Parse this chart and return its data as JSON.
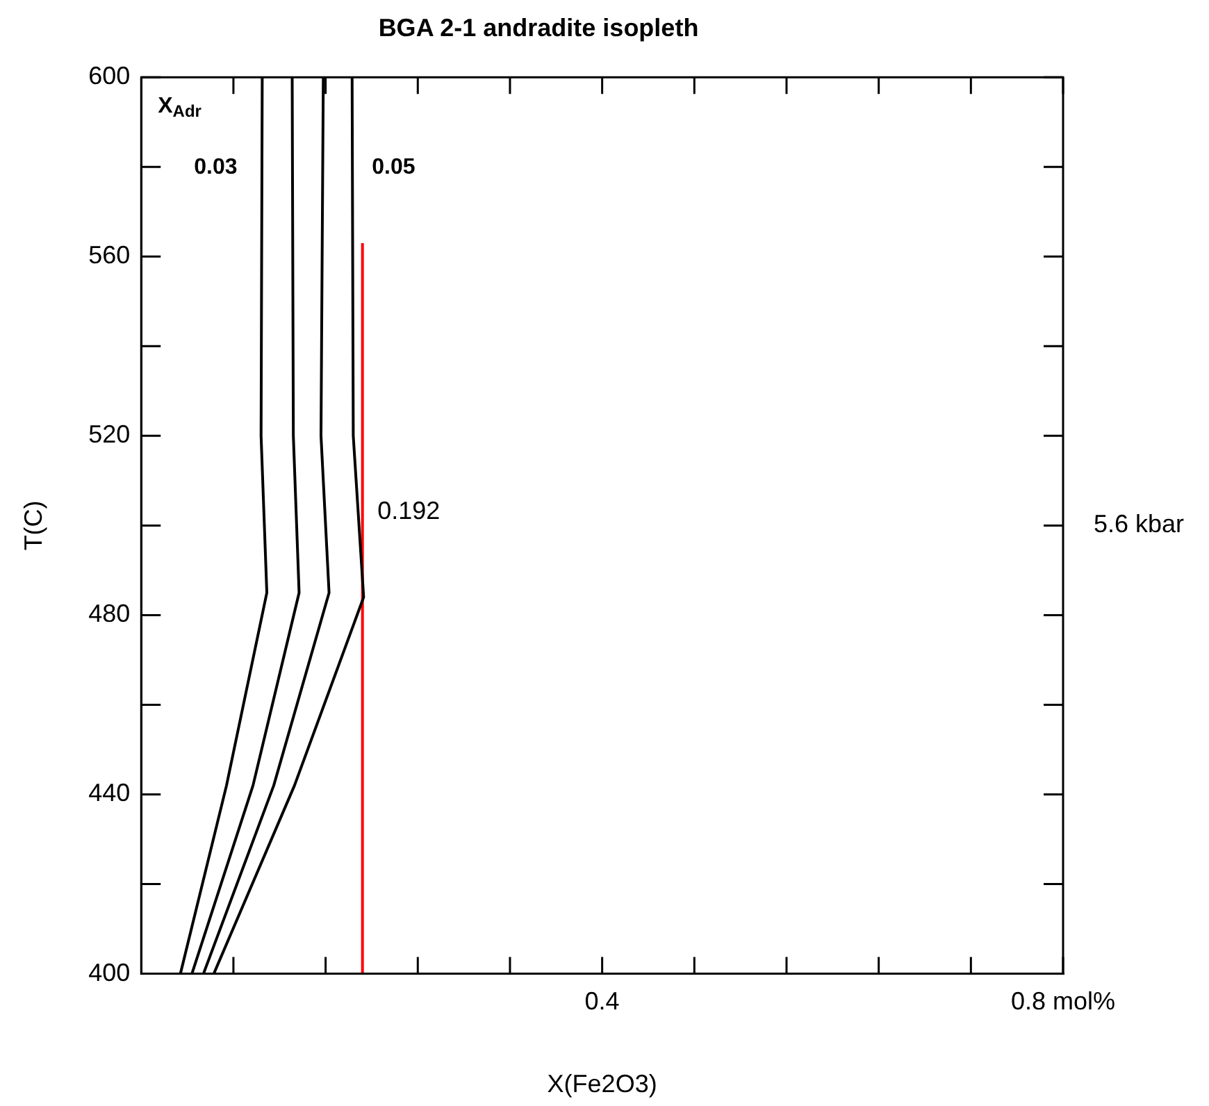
{
  "chart_data": {
    "type": "line",
    "title": "BGA 2-1 andradite isopleth",
    "xlabel": "X(Fe2O3)",
    "ylabel": "T(C)",
    "series": [
      {
        "color": "#000000",
        "x": [
          0.105,
          0.104,
          0.109,
          0.074,
          0.034
        ],
        "values": [
          600,
          520,
          485,
          442,
          400
        ]
      },
      {
        "color": "#000000",
        "x": [
          0.131,
          0.132,
          0.137,
          0.097,
          0.044
        ],
        "values": [
          600,
          520,
          485,
          442,
          400
        ]
      },
      {
        "color": "#000000",
        "x": [
          0.158,
          0.156,
          0.163,
          0.115,
          0.054
        ],
        "values": [
          600,
          520,
          485,
          442,
          400
        ]
      },
      {
        "color": "#000000",
        "x": [
          0.183,
          0.184,
          0.193,
          0.133,
          0.063
        ],
        "values": [
          600,
          520,
          484,
          442,
          400
        ]
      },
      {
        "color": "#ff0000",
        "x": [
          0.192,
          0.192
        ],
        "values": [
          400,
          563
        ]
      }
    ],
    "annotations": [
      "X$_{Adr}$",
      "0.03",
      "0.05",
      "0.192",
      "5.6 kbar"
    ],
    "xlim": [
      0,
      0.8
    ],
    "ylim": [
      400,
      600
    ],
    "xticks": [
      {
        "value": 0.08,
        "label": null
      },
      {
        "value": 0.16,
        "label": null
      },
      {
        "value": 0.24,
        "label": null
      },
      {
        "value": 0.32,
        "label": null
      },
      0.4,
      {
        "value": 0.48,
        "label": null
      },
      {
        "value": 0.56,
        "label": null
      },
      {
        "value": 0.64,
        "label": null
      },
      {
        "value": 0.72,
        "label": null
      },
      {
        "value": 0.8,
        "label": "0.8 mol%"
      }
    ],
    "yticks": [
      400,
      {
        "value": 420,
        "label": null
      },
      440,
      {
        "value": 460,
        "label": null
      },
      480,
      {
        "value": 500,
        "label": null
      },
      520,
      {
        "value": 540,
        "label": null
      },
      560,
      {
        "value": 580,
        "label": null
      },
      600
    ],
    "grid": false,
    "legend": false,
    "marker": "none",
    "line_style": "solid"
  }
}
